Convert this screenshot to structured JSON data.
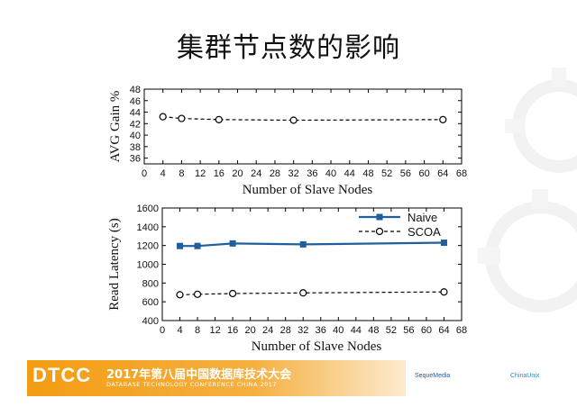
{
  "slide": {
    "title": "集群节点数的影响"
  },
  "footer": {
    "logo": "DTCC",
    "conf_title": "2017年第八届中国数据库技术大会",
    "conf_sub": "DATABASE TECHNOLOGY CONFERENCE CHINA 2017",
    "sponsors": [
      "SequeMedia",
      "",
      "",
      "ChinaUnix"
    ]
  },
  "chart_data": [
    {
      "type": "line",
      "title": "",
      "xlabel": "Number of Slave Nodes",
      "ylabel": "AVG Gain %",
      "xlim": [
        0,
        68
      ],
      "ylim": [
        35,
        48
      ],
      "xticks": [
        0,
        4,
        8,
        12,
        16,
        20,
        24,
        28,
        32,
        36,
        40,
        44,
        48,
        52,
        56,
        60,
        64,
        68
      ],
      "yticks": [
        36,
        38,
        40,
        42,
        44,
        46,
        48
      ],
      "grid": false,
      "legend": "none",
      "series": [
        {
          "x": [
            4,
            8,
            16,
            32,
            64
          ],
          "values": [
            43.2,
            42.9,
            42.7,
            42.6,
            42.7
          ],
          "color": "#000000",
          "style": "dashed",
          "marker": "open-circle"
        }
      ]
    },
    {
      "type": "line",
      "title": "",
      "xlabel": "Number of Slave Nodes",
      "ylabel": "Read Latency (s)",
      "xlim": [
        0,
        68
      ],
      "ylim": [
        400,
        1600
      ],
      "xticks": [
        0,
        4,
        8,
        12,
        16,
        20,
        24,
        28,
        32,
        36,
        40,
        44,
        48,
        52,
        56,
        60,
        64,
        68
      ],
      "yticks": [
        400,
        600,
        800,
        1000,
        1200,
        1400,
        1600
      ],
      "grid": false,
      "legend": "top-right",
      "series": [
        {
          "name": "Naive",
          "x": [
            4,
            8,
            16,
            32,
            64
          ],
          "values": [
            1195,
            1195,
            1222,
            1212,
            1230
          ],
          "color": "#1f5f9e",
          "style": "solid",
          "marker": "filled-square"
        },
        {
          "name": "SCOA",
          "x": [
            4,
            8,
            16,
            32,
            64
          ],
          "values": [
            675,
            680,
            688,
            695,
            705
          ],
          "color": "#000000",
          "style": "dashed",
          "marker": "open-circle"
        }
      ]
    }
  ]
}
